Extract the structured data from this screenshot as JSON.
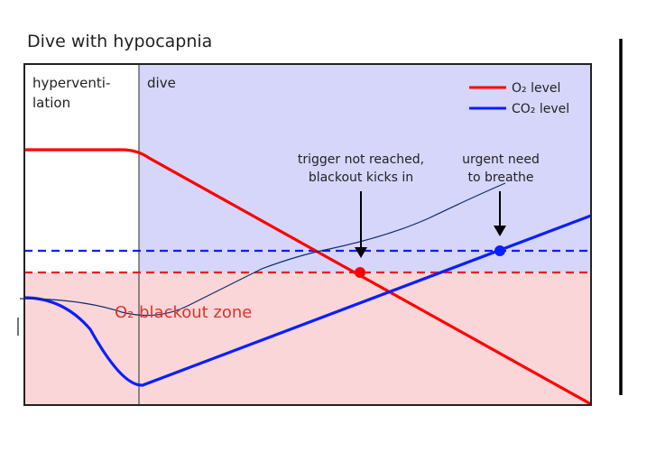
{
  "title": "Dive with hypocapnia",
  "phases": {
    "hyperventilation_line1": "hyperventi-",
    "hyperventilation_line2": "lation",
    "dive": "dive"
  },
  "legend": {
    "o2": "O₂ level",
    "co2": "CO₂ level"
  },
  "zone_label": "O₂ blackout zone",
  "annotations": {
    "trigger_line1": "trigger not reached,",
    "trigger_line2": "blackout kicks in",
    "urgent_line1": "urgent need",
    "urgent_line2": "to breathe"
  },
  "colors": {
    "o2": "#ff0000",
    "co2": "#0a1fff",
    "dive_bg": "#d6d6fb",
    "blackout_bg": "#fbd6d9",
    "zone_text": "#d9362a",
    "handdrawn": "#0d2b6b"
  }
}
